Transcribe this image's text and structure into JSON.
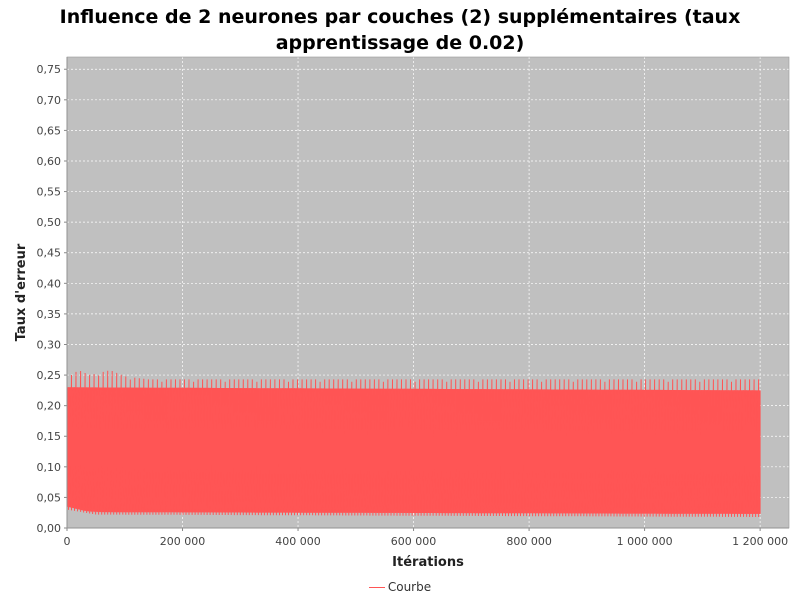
{
  "chart_data": {
    "type": "area",
    "title_line1": "Influence de 2 neurones par couches (2) supplémentaires (taux",
    "title_line2": "apprentissage de 0.02)",
    "xlabel": "Itérations",
    "ylabel": "Taux d'erreur",
    "xlim": [
      0,
      1250000
    ],
    "ylim": [
      0.0,
      0.77
    ],
    "x_ticks": [
      0,
      200000,
      400000,
      600000,
      800000,
      1000000,
      1200000
    ],
    "x_tick_labels": [
      "0",
      "200 000",
      "400 000",
      "600 000",
      "800 000",
      "1 000 000",
      "1 200 000"
    ],
    "y_ticks": [
      0.0,
      0.05,
      0.1,
      0.15,
      0.2,
      0.25,
      0.3,
      0.35,
      0.4,
      0.45,
      0.5,
      0.55,
      0.6,
      0.65,
      0.7,
      0.75
    ],
    "y_tick_labels": [
      "0,00",
      "0,05",
      "0,10",
      "0,15",
      "0,20",
      "0,25",
      "0,30",
      "0,35",
      "0,40",
      "0,45",
      "0,50",
      "0,55",
      "0,60",
      "0,65",
      "0,70",
      "0,75"
    ],
    "grid": true,
    "legend_position": "bottom",
    "series": [
      {
        "name": "Courbe",
        "color": "#ff5555",
        "x_start": 0,
        "x_end": 1200000,
        "upper_envelope": [
          [
            0,
            0.245
          ],
          [
            20000,
            0.258
          ],
          [
            40000,
            0.25
          ],
          [
            75000,
            0.258
          ],
          [
            100000,
            0.248
          ],
          [
            140000,
            0.243
          ],
          [
            300000,
            0.243
          ],
          [
            1200000,
            0.243
          ]
        ],
        "band_top": [
          [
            0,
            0.23
          ],
          [
            1200000,
            0.225
          ]
        ],
        "band_bottom": [
          [
            0,
            0.035
          ],
          [
            40000,
            0.026
          ],
          [
            1200000,
            0.023
          ]
        ],
        "lower_envelope": [
          [
            0,
            0.03
          ],
          [
            50000,
            0.022
          ],
          [
            1200000,
            0.018
          ]
        ]
      }
    ]
  },
  "legend": {
    "items": [
      {
        "label": "Courbe",
        "color": "#ff5555"
      }
    ]
  },
  "plot_background": "#c0c0c0",
  "grid_color": "#ffffff"
}
